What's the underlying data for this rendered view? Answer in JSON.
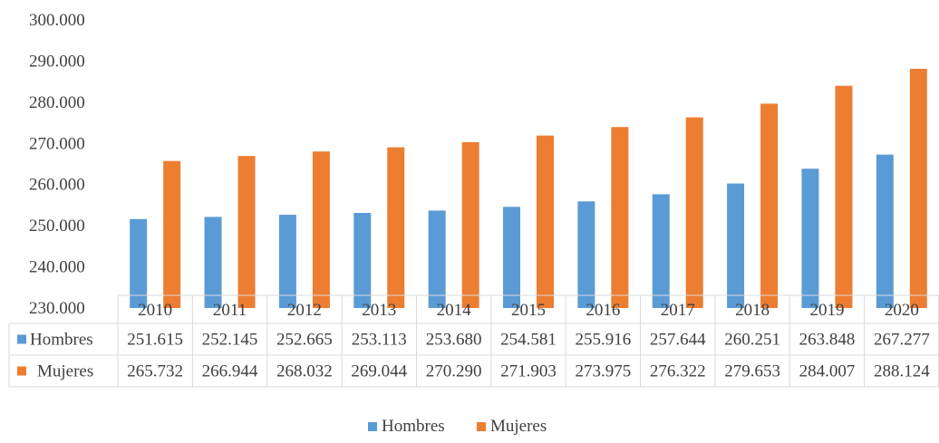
{
  "chart_data": {
    "type": "bar",
    "categories": [
      "2010",
      "2011",
      "2012",
      "2013",
      "2014",
      "2015",
      "2016",
      "2017",
      "2018",
      "2019",
      "2020"
    ],
    "series": [
      {
        "name": "Hombres",
        "values": [
          251615,
          252145,
          252665,
          253113,
          253680,
          254581,
          255916,
          257644,
          260251,
          263848,
          267277
        ],
        "labels": [
          "251.615",
          "252.145",
          "252.665",
          "253.113",
          "253.680",
          "254.581",
          "255.916",
          "257.644",
          "260.251",
          "263.848",
          "267.277"
        ],
        "color": "#5B9BD5"
      },
      {
        "name": "Mujeres",
        "values": [
          265732,
          266944,
          268032,
          269044,
          270290,
          271903,
          273975,
          276322,
          279653,
          284007,
          288124
        ],
        "labels": [
          "265.732",
          "266.944",
          "268.032",
          "269.044",
          "270.290",
          "271.903",
          "273.975",
          "276.322",
          "279.653",
          "284.007",
          "288.124"
        ],
        "color": "#ED7D31"
      }
    ],
    "ylim": [
      230000,
      300000
    ],
    "yticks": [
      {
        "value": 230000,
        "label": "230.000"
      },
      {
        "value": 240000,
        "label": "240.000"
      },
      {
        "value": 250000,
        "label": "250.000"
      },
      {
        "value": 260000,
        "label": "260.000"
      },
      {
        "value": 270000,
        "label": "270.000"
      },
      {
        "value": 280000,
        "label": "280.000"
      },
      {
        "value": 290000,
        "label": "290.000"
      },
      {
        "value": 300000,
        "label": "300.000"
      }
    ],
    "grid": false,
    "data_table": true,
    "legend": "bottom"
  }
}
